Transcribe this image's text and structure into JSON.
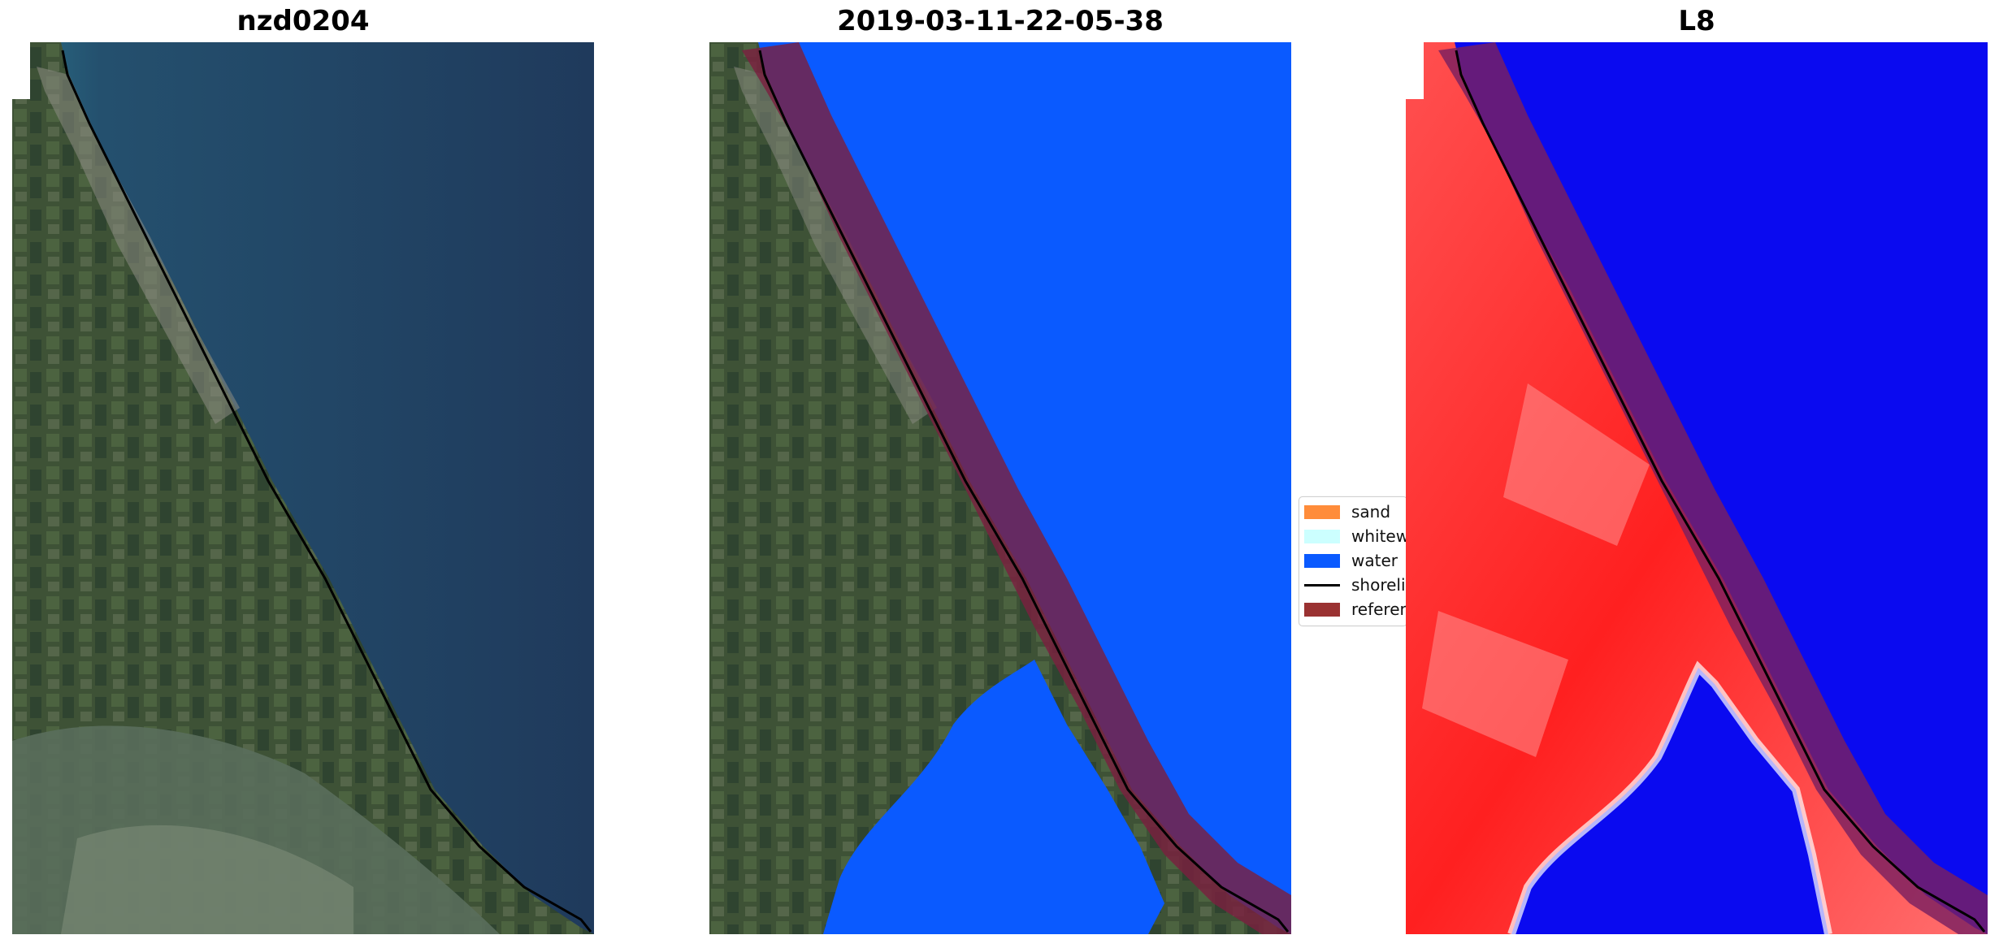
{
  "panels": [
    {
      "title": "nzd0204"
    },
    {
      "title": "2019-03-11-22-05-38"
    },
    {
      "title": "L8"
    }
  ],
  "legend": {
    "items": [
      {
        "label": "sand",
        "color": "#ff8c3a"
      },
      {
        "label": "whitewater",
        "color": "#ccffff"
      },
      {
        "label": "water",
        "color": "#0a5aff"
      },
      {
        "label": "shoreline",
        "color": "#000000"
      },
      {
        "label": "reference shoreline buffer",
        "color": "#9a3232"
      }
    ]
  },
  "colors": {
    "ocean": "#213a5c",
    "land": "#3c4f3a",
    "water_class": "#0a5aff",
    "index_land": "#ff2a2a",
    "index_water": "#0a0af0",
    "buffer": "#7a2040"
  }
}
